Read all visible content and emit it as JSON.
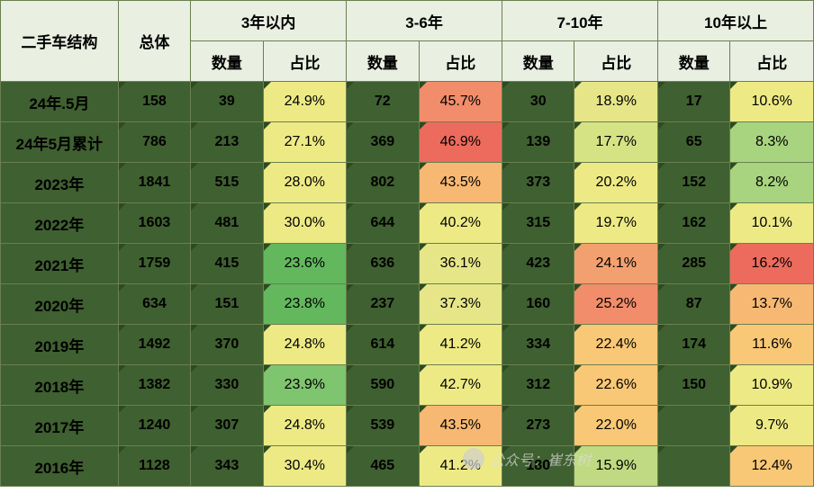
{
  "header": {
    "corner": "二手车结构",
    "groups": [
      "3年以内",
      "3-6年",
      "7-10年",
      "10年以上"
    ],
    "sub_total": "总体",
    "sub_qty": "数量",
    "sub_pct": "占比"
  },
  "col_widths": {
    "label": 130,
    "total": 80,
    "qty": 80,
    "pct": 92
  },
  "colors": {
    "header_bg": "#e9efe1",
    "label_bg": "#3f6030",
    "data_bg": "#3f6030",
    "border": "#6b8050"
  },
  "heat_palette": {
    "low": "#4fae56",
    "mid_low": "#a8d37f",
    "mid": "#edea85",
    "mid_high": "#f9c876",
    "high": "#f18d6b",
    "highest": "#ec6b5d"
  },
  "rows": [
    {
      "label": "24年.5月",
      "total": 158,
      "g": [
        {
          "qty": 39,
          "pct": "24.9%",
          "color": "#edea85"
        },
        {
          "qty": 72,
          "pct": "45.7%",
          "color": "#f18d6b"
        },
        {
          "qty": 30,
          "pct": "18.9%",
          "color": "#e6e689"
        },
        {
          "qty": 17,
          "pct": "10.6%",
          "color": "#edea85"
        }
      ]
    },
    {
      "label": "24年5月累计",
      "total": 786,
      "g": [
        {
          "qty": 213,
          "pct": "27.1%",
          "color": "#edea85"
        },
        {
          "qty": 369,
          "pct": "46.9%",
          "color": "#ec6b5d"
        },
        {
          "qty": 139,
          "pct": "17.7%",
          "color": "#d6e385"
        },
        {
          "qty": 65,
          "pct": "8.3%",
          "color": "#a8d37f"
        }
      ]
    },
    {
      "label": "2023年",
      "total": 1841,
      "g": [
        {
          "qty": 515,
          "pct": "28.0%",
          "color": "#edea85"
        },
        {
          "qty": 802,
          "pct": "43.5%",
          "color": "#f7b873"
        },
        {
          "qty": 373,
          "pct": "20.2%",
          "color": "#edea85"
        },
        {
          "qty": 152,
          "pct": "8.2%",
          "color": "#a8d37f"
        }
      ]
    },
    {
      "label": "2022年",
      "total": 1603,
      "g": [
        {
          "qty": 481,
          "pct": "30.0%",
          "color": "#edea85"
        },
        {
          "qty": 644,
          "pct": "40.2%",
          "color": "#edea85"
        },
        {
          "qty": 315,
          "pct": "19.7%",
          "color": "#edea85"
        },
        {
          "qty": 162,
          "pct": "10.1%",
          "color": "#edea85"
        }
      ]
    },
    {
      "label": "2021年",
      "total": 1759,
      "g": [
        {
          "qty": 415,
          "pct": "23.6%",
          "color": "#63b85e"
        },
        {
          "qty": 636,
          "pct": "36.1%",
          "color": "#e6e689"
        },
        {
          "qty": 423,
          "pct": "24.1%",
          "color": "#f3a070"
        },
        {
          "qty": 285,
          "pct": "16.2%",
          "color": "#ec6b5d"
        }
      ]
    },
    {
      "label": "2020年",
      "total": 634,
      "g": [
        {
          "qty": 151,
          "pct": "23.8%",
          "color": "#63b85e"
        },
        {
          "qty": 237,
          "pct": "37.3%",
          "color": "#e6e689"
        },
        {
          "qty": 160,
          "pct": "25.2%",
          "color": "#f18d6b"
        },
        {
          "qty": 87,
          "pct": "13.7%",
          "color": "#f7b873"
        }
      ]
    },
    {
      "label": "2019年",
      "total": 1492,
      "g": [
        {
          "qty": 370,
          "pct": "24.8%",
          "color": "#edea85"
        },
        {
          "qty": 614,
          "pct": "41.2%",
          "color": "#edea85"
        },
        {
          "qty": 334,
          "pct": "22.4%",
          "color": "#f9c876"
        },
        {
          "qty": 174,
          "pct": "11.6%",
          "color": "#f9c876"
        }
      ]
    },
    {
      "label": "2018年",
      "total": 1382,
      "g": [
        {
          "qty": 330,
          "pct": "23.9%",
          "color": "#7fc46e"
        },
        {
          "qty": 590,
          "pct": "42.7%",
          "color": "#edea85"
        },
        {
          "qty": 312,
          "pct": "22.6%",
          "color": "#f9c876"
        },
        {
          "qty": 150,
          "pct": "10.9%",
          "color": "#edea85"
        }
      ]
    },
    {
      "label": "2017年",
      "total": 1240,
      "g": [
        {
          "qty": 307,
          "pct": "24.8%",
          "color": "#edea85"
        },
        {
          "qty": 539,
          "pct": "43.5%",
          "color": "#f7b873"
        },
        {
          "qty": 273,
          "pct": "22.0%",
          "color": "#f9c876"
        },
        {
          "qty": "",
          "pct": "9.7%",
          "color": "#edea85"
        }
      ]
    },
    {
      "label": "2016年",
      "total": 1128,
      "g": [
        {
          "qty": 343,
          "pct": "30.4%",
          "color": "#edea85"
        },
        {
          "qty": 465,
          "pct": "41.2%",
          "color": "#edea85"
        },
        {
          "qty": 180,
          "pct": "15.9%",
          "color": "#bfda82"
        },
        {
          "qty": "",
          "pct": "12.4%",
          "color": "#f9c876"
        }
      ]
    }
  ],
  "watermark": "公众号：崔东树"
}
